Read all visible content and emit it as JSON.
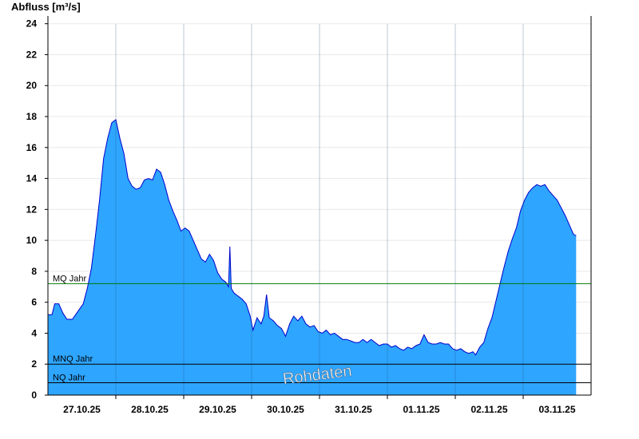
{
  "chart_data": {
    "type": "area",
    "title": "Abfluss [m³/s]",
    "ylim": [
      0,
      24.5
    ],
    "yticks": [
      0,
      2,
      4,
      6,
      8,
      10,
      12,
      14,
      16,
      18,
      20,
      22,
      24
    ],
    "x_days": [
      "27.10.25",
      "28.10.25",
      "29.10.25",
      "30.10.25",
      "31.10.25",
      "01.11.25",
      "02.11.25",
      "03.11.25"
    ],
    "grid": "horizontal",
    "series": [
      {
        "values": [
          [
            0.0,
            5.2
          ],
          [
            0.06,
            5.2
          ],
          [
            0.1,
            5.9
          ],
          [
            0.16,
            5.9
          ],
          [
            0.22,
            5.3
          ],
          [
            0.28,
            4.9
          ],
          [
            0.36,
            4.9
          ],
          [
            0.44,
            5.4
          ],
          [
            0.52,
            5.9
          ],
          [
            0.58,
            6.9
          ],
          [
            0.64,
            8.2
          ],
          [
            0.7,
            10.3
          ],
          [
            0.76,
            12.6
          ],
          [
            0.82,
            15.3
          ],
          [
            0.88,
            16.6
          ],
          [
            0.94,
            17.6
          ],
          [
            1.0,
            17.8
          ],
          [
            1.06,
            16.6
          ],
          [
            1.12,
            15.6
          ],
          [
            1.18,
            14.0
          ],
          [
            1.24,
            13.5
          ],
          [
            1.3,
            13.3
          ],
          [
            1.36,
            13.4
          ],
          [
            1.42,
            13.9
          ],
          [
            1.48,
            14.0
          ],
          [
            1.54,
            13.9
          ],
          [
            1.6,
            14.6
          ],
          [
            1.66,
            14.4
          ],
          [
            1.72,
            13.6
          ],
          [
            1.78,
            12.6
          ],
          [
            1.84,
            11.9
          ],
          [
            1.9,
            11.3
          ],
          [
            1.96,
            10.6
          ],
          [
            2.02,
            10.8
          ],
          [
            2.08,
            10.6
          ],
          [
            2.14,
            10.0
          ],
          [
            2.2,
            9.4
          ],
          [
            2.26,
            8.8
          ],
          [
            2.32,
            8.6
          ],
          [
            2.38,
            9.1
          ],
          [
            2.44,
            8.7
          ],
          [
            2.5,
            7.9
          ],
          [
            2.56,
            7.5
          ],
          [
            2.62,
            7.3
          ],
          [
            2.66,
            7.0
          ],
          [
            2.68,
            9.6
          ],
          [
            2.7,
            6.9
          ],
          [
            2.74,
            6.6
          ],
          [
            2.8,
            6.4
          ],
          [
            2.86,
            6.2
          ],
          [
            2.92,
            5.9
          ],
          [
            2.98,
            5.1
          ],
          [
            3.02,
            4.2
          ],
          [
            3.08,
            5.0
          ],
          [
            3.14,
            4.6
          ],
          [
            3.18,
            5.1
          ],
          [
            3.22,
            6.5
          ],
          [
            3.26,
            5.0
          ],
          [
            3.32,
            4.8
          ],
          [
            3.38,
            4.5
          ],
          [
            3.44,
            4.3
          ],
          [
            3.5,
            3.8
          ],
          [
            3.56,
            4.6
          ],
          [
            3.62,
            5.1
          ],
          [
            3.68,
            4.8
          ],
          [
            3.74,
            5.1
          ],
          [
            3.8,
            4.6
          ],
          [
            3.86,
            4.4
          ],
          [
            3.92,
            4.5
          ],
          [
            3.98,
            4.1
          ],
          [
            4.04,
            4.0
          ],
          [
            4.1,
            4.2
          ],
          [
            4.16,
            3.9
          ],
          [
            4.22,
            4.0
          ],
          [
            4.28,
            3.8
          ],
          [
            4.34,
            3.6
          ],
          [
            4.4,
            3.6
          ],
          [
            4.46,
            3.5
          ],
          [
            4.52,
            3.4
          ],
          [
            4.58,
            3.4
          ],
          [
            4.64,
            3.6
          ],
          [
            4.7,
            3.4
          ],
          [
            4.76,
            3.6
          ],
          [
            4.82,
            3.4
          ],
          [
            4.88,
            3.2
          ],
          [
            4.94,
            3.3
          ],
          [
            5.0,
            3.3
          ],
          [
            5.06,
            3.1
          ],
          [
            5.12,
            3.2
          ],
          [
            5.18,
            3.0
          ],
          [
            5.24,
            2.9
          ],
          [
            5.3,
            3.1
          ],
          [
            5.36,
            3.0
          ],
          [
            5.42,
            3.2
          ],
          [
            5.48,
            3.3
          ],
          [
            5.54,
            3.9
          ],
          [
            5.6,
            3.4
          ],
          [
            5.66,
            3.3
          ],
          [
            5.72,
            3.3
          ],
          [
            5.78,
            3.4
          ],
          [
            5.84,
            3.3
          ],
          [
            5.9,
            3.3
          ],
          [
            5.96,
            3.0
          ],
          [
            6.02,
            2.9
          ],
          [
            6.08,
            3.0
          ],
          [
            6.14,
            2.8
          ],
          [
            6.2,
            2.7
          ],
          [
            6.26,
            2.8
          ],
          [
            6.3,
            2.6
          ],
          [
            6.36,
            3.1
          ],
          [
            6.42,
            3.4
          ],
          [
            6.48,
            4.3
          ],
          [
            6.54,
            5.0
          ],
          [
            6.6,
            6.1
          ],
          [
            6.66,
            7.2
          ],
          [
            6.72,
            8.3
          ],
          [
            6.78,
            9.3
          ],
          [
            6.84,
            10.1
          ],
          [
            6.9,
            10.8
          ],
          [
            6.96,
            11.9
          ],
          [
            7.02,
            12.6
          ],
          [
            7.08,
            13.1
          ],
          [
            7.14,
            13.4
          ],
          [
            7.2,
            13.6
          ],
          [
            7.26,
            13.5
          ],
          [
            7.32,
            13.6
          ],
          [
            7.38,
            13.2
          ],
          [
            7.44,
            12.9
          ],
          [
            7.5,
            12.6
          ],
          [
            7.56,
            12.1
          ],
          [
            7.62,
            11.6
          ],
          [
            7.68,
            11.0
          ],
          [
            7.74,
            10.4
          ],
          [
            7.78,
            10.3
          ]
        ],
        "fill_color": "#2ea5ff",
        "line_color": "#0000cc"
      }
    ],
    "reference_lines": [
      {
        "label": "MQ Jahr",
        "value": 7.2,
        "color": "#007a00"
      },
      {
        "label": "MNQ Jahr",
        "value": 2.0,
        "color": "#000000"
      },
      {
        "label": "NQ Jahr",
        "value": 0.8,
        "color": "#000000"
      }
    ],
    "watermark": "Rohdaten"
  }
}
